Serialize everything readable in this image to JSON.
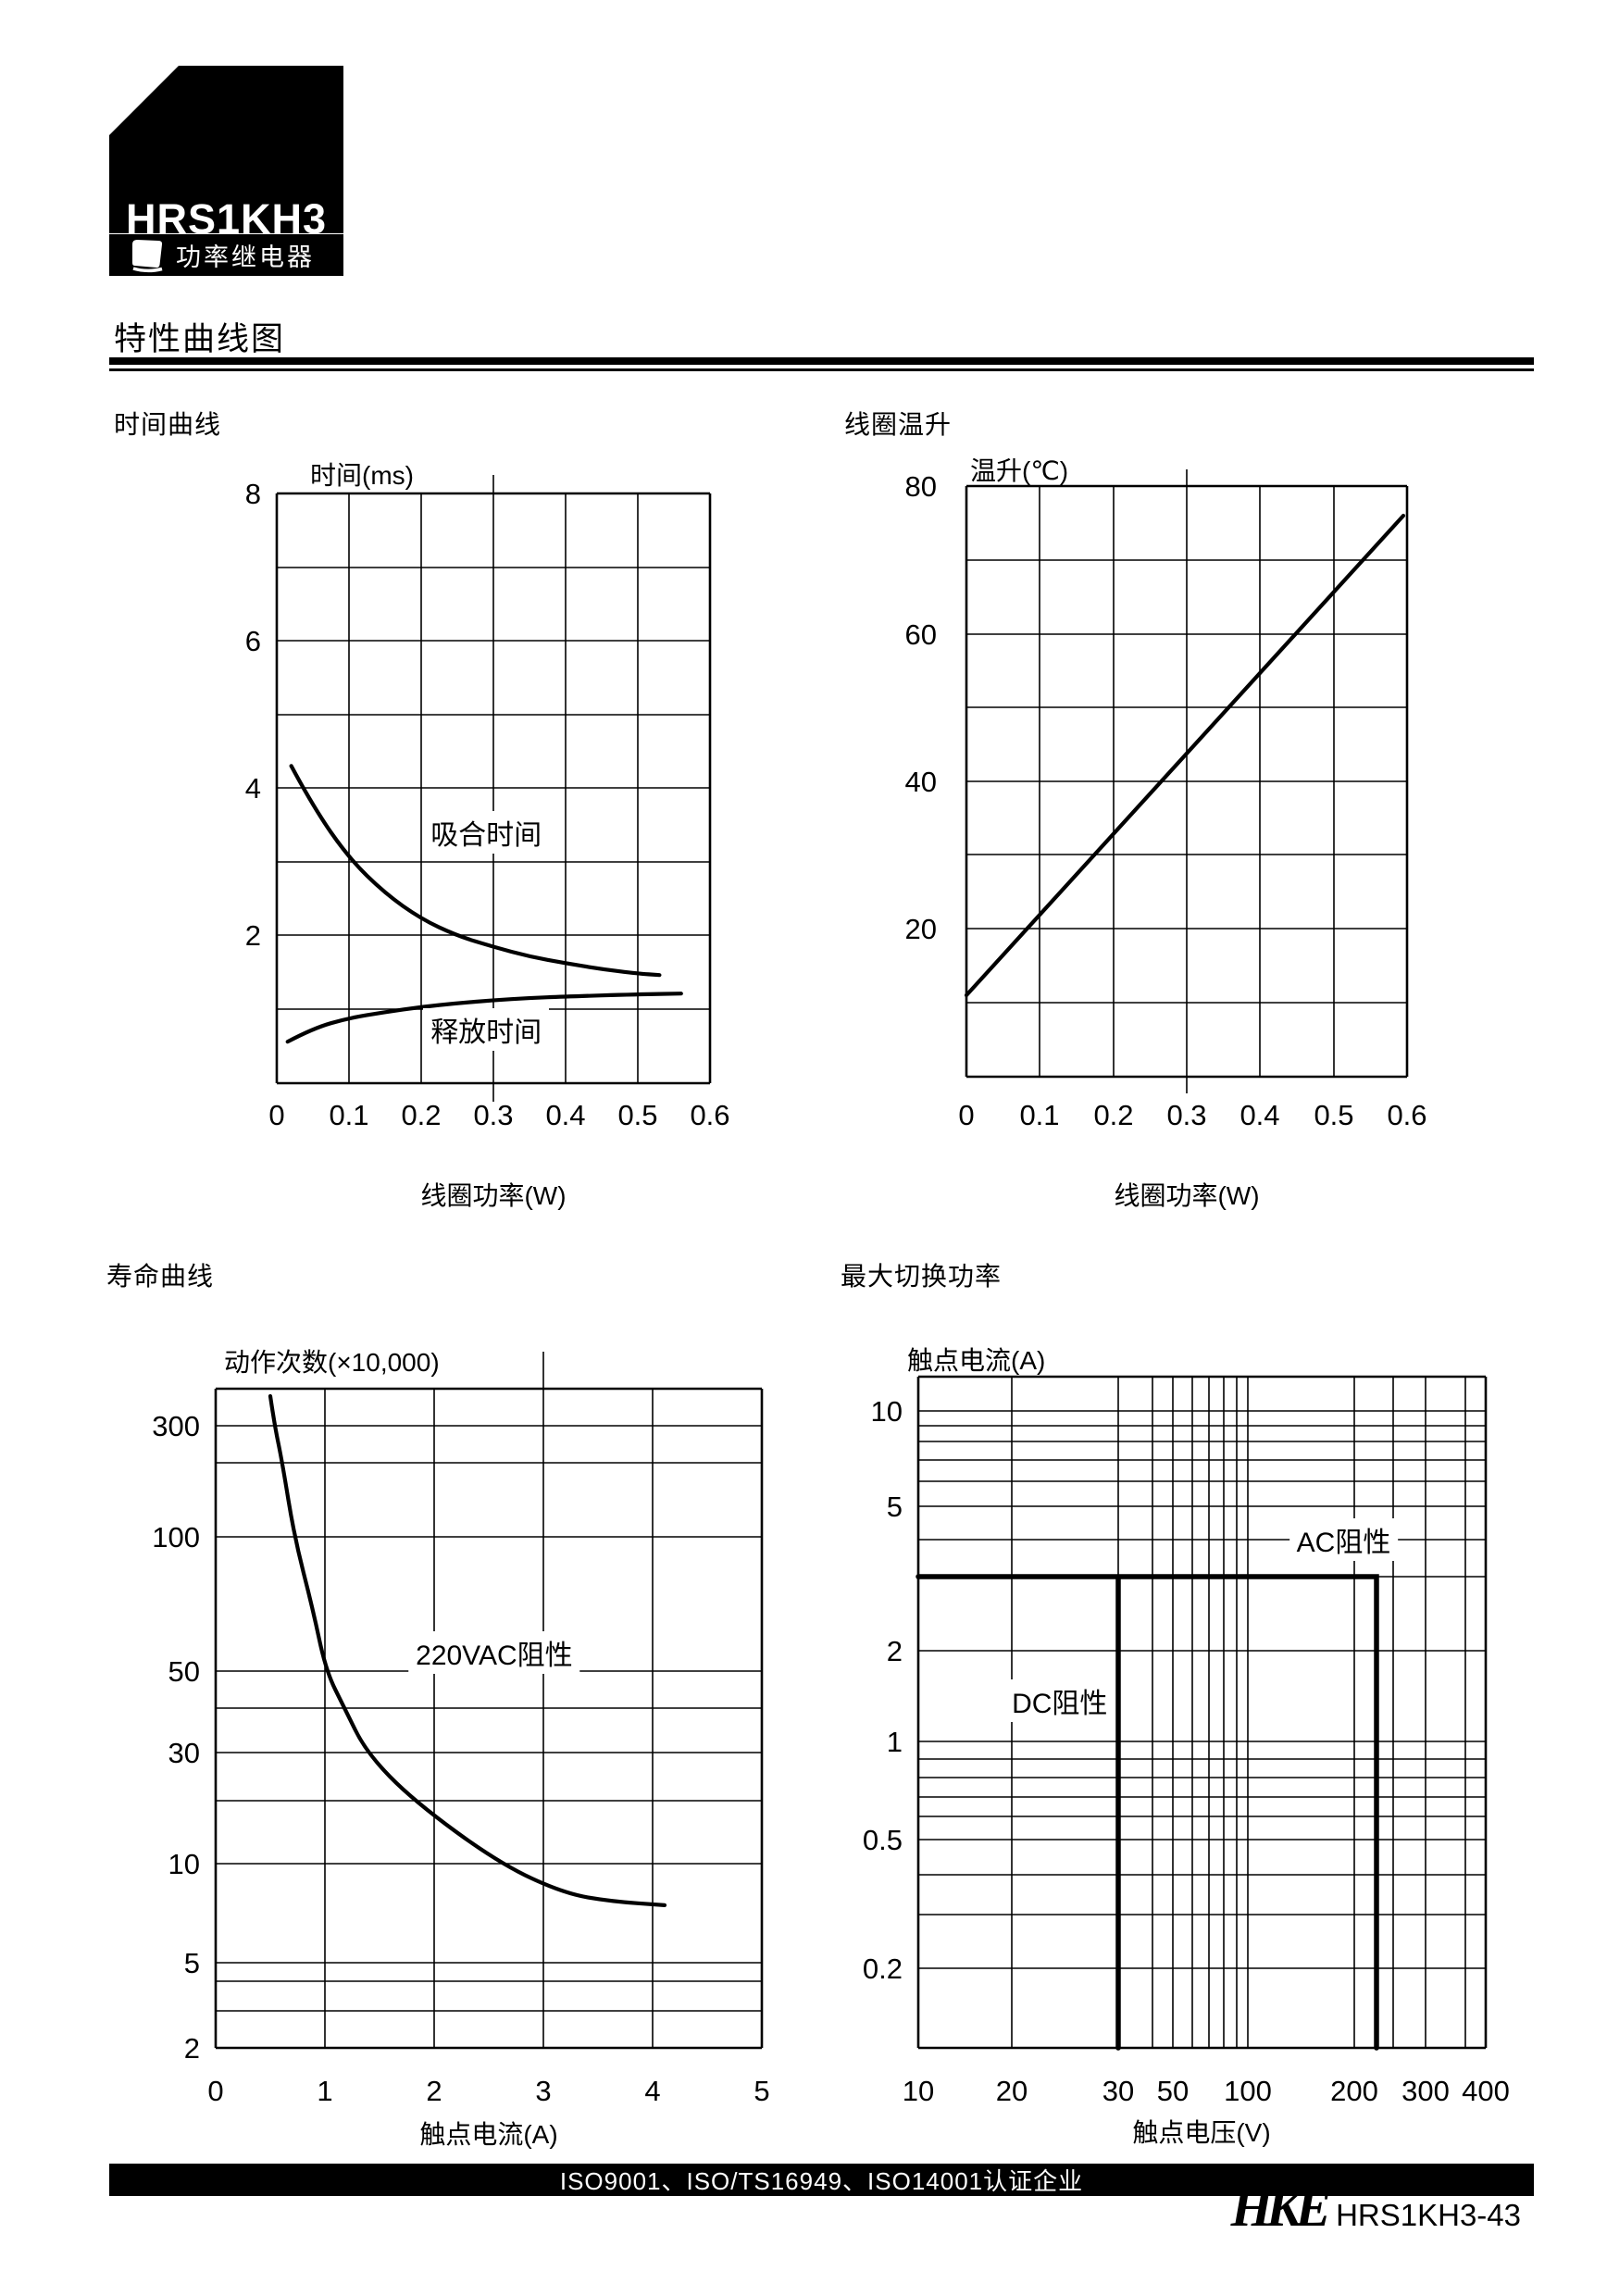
{
  "header": {
    "product_code": "HRS1KH3",
    "category_badge": "功率继电器",
    "page_title": "特性曲线图"
  },
  "footer": {
    "certification": "ISO9001、ISO/TS16949、ISO14001认证企业",
    "brand": "HKE",
    "doc_code": "HRS1KH3-43"
  },
  "chart_data": [
    {
      "id": "time-curves",
      "type": "line",
      "title": "时间曲线",
      "y_axis_label": "时间(ms)",
      "x_axis_label": "线圈功率(W)",
      "x_range": [
        0,
        0.6
      ],
      "y_range": [
        0,
        8
      ],
      "grid": "on",
      "x_gridlines": [
        {
          "v": 0,
          "label": "0"
        },
        {
          "v": 0.1,
          "label": "0.1"
        },
        {
          "v": 0.2,
          "label": "0.2"
        },
        {
          "v": 0.3,
          "label": "0.3"
        },
        {
          "v": 0.4,
          "label": "0.4"
        },
        {
          "v": 0.5,
          "label": "0.5"
        },
        {
          "v": 0.6,
          "label": "0.6"
        }
      ],
      "y_gridlines": [
        {
          "v": 8,
          "label": "8"
        },
        {
          "v": 7
        },
        {
          "v": 6,
          "label": "6"
        },
        {
          "v": 5
        },
        {
          "v": 4,
          "label": "4"
        },
        {
          "v": 3
        },
        {
          "v": 2,
          "label": "2"
        },
        {
          "v": 1
        },
        {
          "v": 0
        }
      ],
      "series": [
        {
          "name": "吸合时间",
          "smooth": true,
          "label_pos": [
            0.29,
            3.4
          ],
          "points": [
            [
              0.02,
              4.3
            ],
            [
              0.05,
              3.75
            ],
            [
              0.1,
              3.05
            ],
            [
              0.15,
              2.57
            ],
            [
              0.2,
              2.22
            ],
            [
              0.25,
              1.99
            ],
            [
              0.3,
              1.84
            ],
            [
              0.35,
              1.71
            ],
            [
              0.4,
              1.62
            ],
            [
              0.45,
              1.54
            ],
            [
              0.5,
              1.48
            ],
            [
              0.53,
              1.46
            ]
          ]
        },
        {
          "name": "释放时间",
          "smooth": true,
          "label_pos": [
            0.29,
            0.72
          ],
          "points": [
            [
              0.015,
              0.56
            ],
            [
              0.05,
              0.74
            ],
            [
              0.1,
              0.88
            ],
            [
              0.15,
              0.96
            ],
            [
              0.2,
              1.03
            ],
            [
              0.25,
              1.08
            ],
            [
              0.3,
              1.12
            ],
            [
              0.35,
              1.15
            ],
            [
              0.4,
              1.17
            ],
            [
              0.5,
              1.2
            ],
            [
              0.56,
              1.21
            ]
          ]
        }
      ]
    },
    {
      "id": "coil-temp-rise",
      "type": "line",
      "title": "线圈温升",
      "y_axis_label": "温升(℃)",
      "x_axis_label": "线圈功率(W)",
      "x_range": [
        0,
        0.6
      ],
      "y_range": [
        0,
        80
      ],
      "grid": "on",
      "x_gridlines": [
        {
          "v": 0,
          "label": "0"
        },
        {
          "v": 0.1,
          "label": "0.1"
        },
        {
          "v": 0.2,
          "label": "0.2"
        },
        {
          "v": 0.3,
          "label": "0.3"
        },
        {
          "v": 0.4,
          "label": "0.4"
        },
        {
          "v": 0.5,
          "label": "0.5"
        },
        {
          "v": 0.6,
          "label": "0.6"
        }
      ],
      "y_gridlines": [
        {
          "v": 80,
          "label": "80"
        },
        {
          "v": 70
        },
        {
          "v": 60,
          "label": "60"
        },
        {
          "v": 50
        },
        {
          "v": 40,
          "label": "40"
        },
        {
          "v": 30
        },
        {
          "v": 20,
          "label": "20"
        },
        {
          "v": 10
        },
        {
          "v": 0
        }
      ],
      "series": [
        {
          "name": "温升",
          "smooth": false,
          "points": [
            [
              0,
              11
            ],
            [
              0.595,
              76
            ]
          ]
        }
      ]
    },
    {
      "id": "life-curve",
      "type": "line",
      "title": "寿命曲线",
      "y_axis_label": "动作次数(×10,000)",
      "x_axis_label": "触点电流(A)",
      "x_range": [
        0,
        5
      ],
      "y_range": [
        2,
        400
      ],
      "y_scale": "log-stylized",
      "grid": "on",
      "x_gridlines": [
        {
          "v": 0,
          "label": "0"
        },
        {
          "v": 1,
          "label": "1"
        },
        {
          "v": 2,
          "label": "2"
        },
        {
          "v": 3,
          "label": "3"
        },
        {
          "v": 4,
          "label": "4"
        },
        {
          "v": 5,
          "label": "5"
        }
      ],
      "y_gridlines": [
        {
          "v": 400
        },
        {
          "v": 300,
          "label": "300"
        },
        {
          "v": 200
        },
        {
          "v": 100,
          "label": "100"
        },
        {
          "v": 50,
          "label": "50"
        },
        {
          "v": 40
        },
        {
          "v": 30,
          "label": "30"
        },
        {
          "v": 20
        },
        {
          "v": 10,
          "label": "10"
        },
        {
          "v": 5,
          "label": "5"
        },
        {
          "v": 4
        },
        {
          "v": 3
        },
        {
          "v": 2,
          "label": "2"
        }
      ],
      "series": [
        {
          "name": "220VAC阻性",
          "smooth": true,
          "label_pos": [
            2.55,
            57
          ],
          "points": [
            [
              0.5,
              380
            ],
            [
              0.54,
              300
            ],
            [
              0.61,
              200
            ],
            [
              0.72,
              100
            ],
            [
              0.89,
              73
            ],
            [
              1.01,
              50
            ],
            [
              1.18,
              40
            ],
            [
              1.38,
              30
            ],
            [
              1.81,
              20
            ],
            [
              2.6,
              10
            ],
            [
              3.19,
              8.5
            ],
            [
              3.62,
              8.1
            ],
            [
              4.11,
              7.9
            ]
          ]
        }
      ]
    },
    {
      "id": "max-switching-power",
      "type": "line",
      "title": "最大切换功率",
      "y_axis_label": "触点电流(A)",
      "x_axis_label": "触点电压(V)",
      "x_range": [
        10,
        400
      ],
      "y_range": [
        0.11,
        13
      ],
      "x_scale": "log-stylized",
      "y_scale": "log-stylized",
      "grid": "on",
      "x_gridlines": [
        {
          "v": 10,
          "label": "10"
        },
        {
          "v": 20,
          "label": "20"
        },
        {
          "v": 30,
          "label": "30"
        },
        {
          "v": 40
        },
        {
          "v": 50,
          "label": "50"
        },
        {
          "v": 60
        },
        {
          "v": 70
        },
        {
          "v": 80
        },
        {
          "v": 90
        },
        {
          "v": 100,
          "label": "100"
        },
        {
          "v": 200,
          "label": "200"
        },
        {
          "v": 250
        },
        {
          "v": 300,
          "label": "300"
        },
        {
          "v": 350
        },
        {
          "v": 400,
          "label": "400"
        }
      ],
      "y_gridlines": [
        {
          "v": 13
        },
        {
          "v": 10,
          "label": "10"
        },
        {
          "v": 9
        },
        {
          "v": 8
        },
        {
          "v": 7
        },
        {
          "v": 6
        },
        {
          "v": 5,
          "label": "5"
        },
        {
          "v": 4
        },
        {
          "v": 3
        },
        {
          "v": 2,
          "label": "2"
        },
        {
          "v": 1,
          "label": "1"
        },
        {
          "v": 0.9
        },
        {
          "v": 0.8
        },
        {
          "v": 0.7
        },
        {
          "v": 0.6
        },
        {
          "v": 0.5,
          "label": "0.5"
        },
        {
          "v": 0.4
        },
        {
          "v": 0.3
        },
        {
          "v": 0.2,
          "label": "0.2"
        },
        {
          "v": 0.11
        }
      ],
      "series": [
        {
          "name": "AC阻性",
          "smooth": false,
          "thick": true,
          "label_pos": [
            190,
            4
          ],
          "points": [
            [
              10,
              3
            ],
            [
              220,
              3
            ],
            [
              220,
              0.11
            ]
          ]
        },
        {
          "name": "DC阻性",
          "smooth": false,
          "thick": true,
          "label_pos": [
            24.5,
            1.45
          ],
          "points": [
            [
              30,
              3
            ],
            [
              30,
              0.11
            ]
          ]
        }
      ]
    }
  ]
}
